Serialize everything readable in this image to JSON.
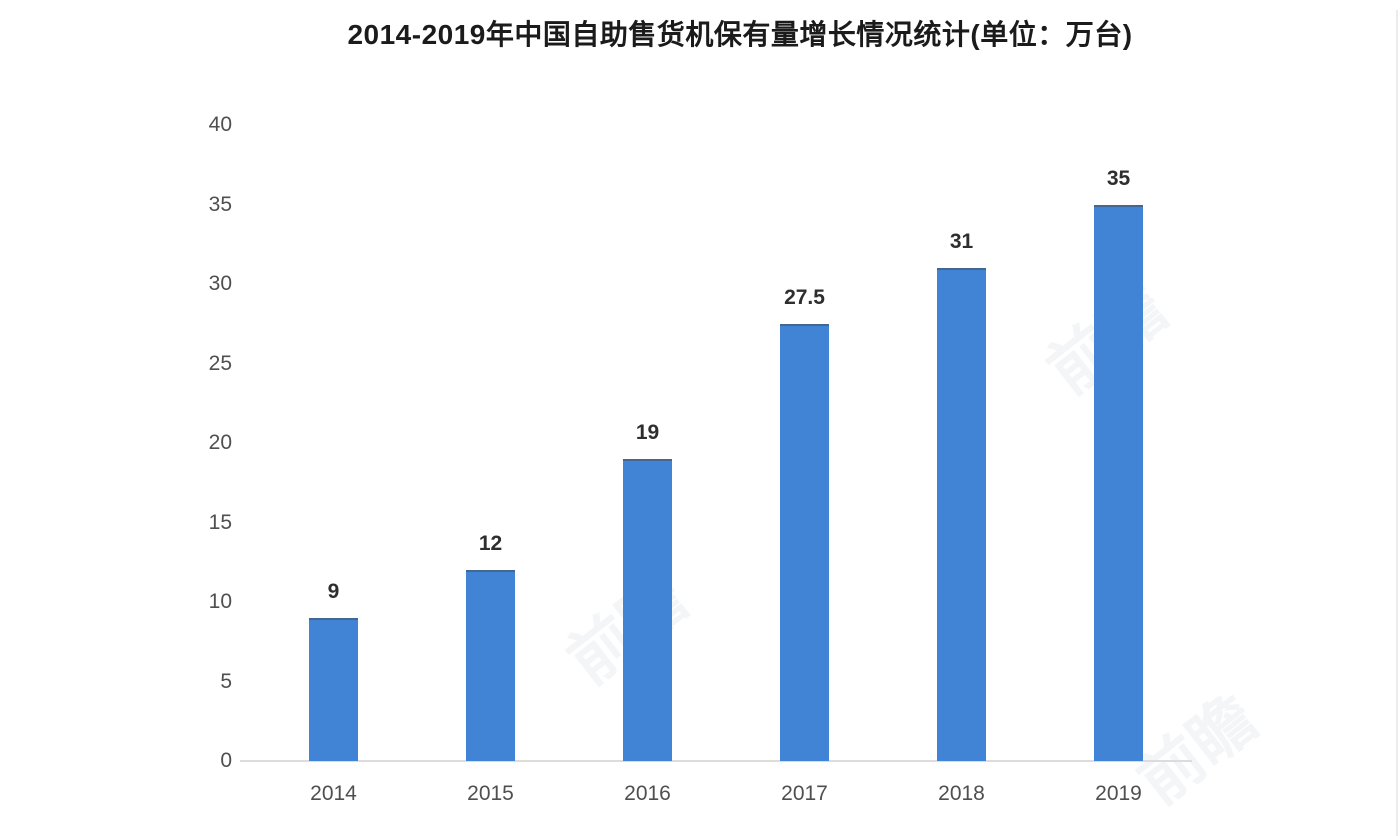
{
  "chart_data": {
    "type": "bar",
    "title": "2014-2019年中国自助售货机保有量增长情况统计(单位：万台)",
    "categories": [
      "2014",
      "2015",
      "2016",
      "2017",
      "2018",
      "2019"
    ],
    "values": [
      9,
      12,
      19,
      27.5,
      31,
      35
    ],
    "bar_labels": [
      "9",
      "12",
      "19",
      "27.5",
      "31",
      "35"
    ],
    "xlabel": "",
    "ylabel": "",
    "unit": "万台",
    "ylim": [
      0,
      40
    ],
    "y_ticks": [
      0,
      5,
      10,
      15,
      20,
      25,
      30,
      35,
      40
    ],
    "grid": false,
    "legend": null
  },
  "colors": {
    "bar": "#4183d5",
    "axis_line": "#dcdcdc",
    "tick_label": "#4f4f4f",
    "value_label": "#2e2e2e",
    "title": "#1b1b1b"
  },
  "watermark": {
    "text": "前瞻"
  }
}
